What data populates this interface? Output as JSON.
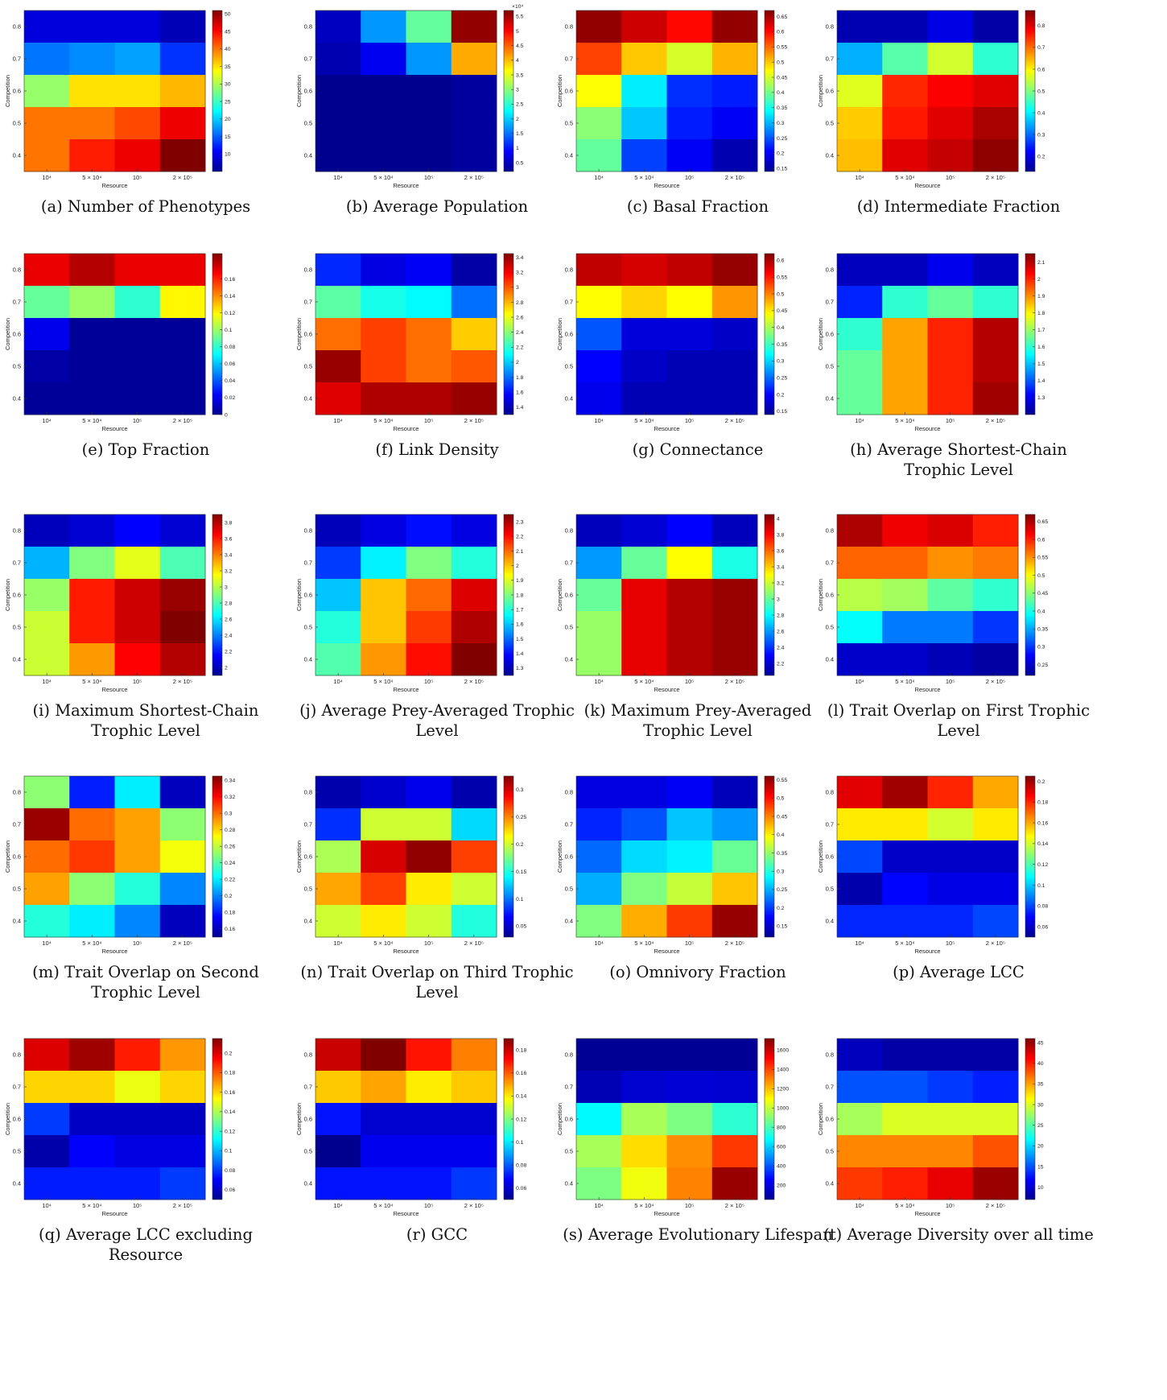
{
  "layout_labels": {
    "ylabel": "Competition",
    "xlabel": "Resource"
  },
  "rows": [
    "0.8",
    "0.7",
    "0.6",
    "0.5",
    "0.4"
  ],
  "cols": [
    "10⁴",
    "5 × 10⁴",
    "10⁵",
    "2 × 10⁵"
  ],
  "colormap": [
    "#00008f",
    "#0000ff",
    "#0080ff",
    "#00ffff",
    "#80ff80",
    "#ffff00",
    "#ff8000",
    "#ff0000",
    "#800000"
  ],
  "chart_data": [
    {
      "type": "heatmap",
      "label": "(a)",
      "title": "Number of Phenotypes",
      "vmin": 5,
      "vmax": 51,
      "cbar_ticks": [
        "10",
        "15",
        "20",
        "25",
        "30",
        "35",
        "40",
        "45",
        "50"
      ],
      "cbar_multiplier": "",
      "values": [
        [
          9,
          9,
          9,
          7
        ],
        [
          16,
          17,
          18,
          13
        ],
        [
          29,
          35,
          35,
          37
        ],
        [
          40,
          40,
          42,
          46
        ],
        [
          40,
          44,
          46,
          51
        ]
      ]
    },
    {
      "type": "heatmap",
      "label": "(b)",
      "title": "Average Population",
      "vmin": 0.2,
      "vmax": 5.7,
      "cbar_ticks": [
        "0.5",
        "1",
        "1.5",
        "2",
        "2.5",
        "3",
        "3.5",
        "4",
        "4.5",
        "5",
        "5.5"
      ],
      "cbar_multiplier": "×10⁴",
      "values": [
        [
          0.5,
          1.7,
          2.8,
          5.6
        ],
        [
          0.4,
          0.8,
          1.7,
          4.1
        ],
        [
          0.2,
          0.2,
          0.2,
          0.3
        ],
        [
          0.2,
          0.2,
          0.2,
          0.3
        ],
        [
          0.2,
          0.2,
          0.2,
          0.3
        ]
      ]
    },
    {
      "type": "heatmap",
      "label": "(c)",
      "title": "Basal Fraction",
      "vmin": 0.14,
      "vmax": 0.67,
      "cbar_ticks": [
        "0.15",
        "0.2",
        "0.25",
        "0.3",
        "0.35",
        "0.4",
        "0.45",
        "0.5",
        "0.55",
        "0.6",
        "0.65"
      ],
      "cbar_multiplier": "",
      "values": [
        [
          0.66,
          0.63,
          0.6,
          0.66
        ],
        [
          0.57,
          0.5,
          0.45,
          0.51
        ],
        [
          0.47,
          0.33,
          0.23,
          0.22
        ],
        [
          0.41,
          0.31,
          0.22,
          0.2
        ],
        [
          0.39,
          0.24,
          0.2,
          0.16
        ]
      ]
    },
    {
      "type": "heatmap",
      "label": "(d)",
      "title": "Intermediate Fraction",
      "vmin": 0.13,
      "vmax": 0.87,
      "cbar_ticks": [
        "0.2",
        "0.3",
        "0.4",
        "0.5",
        "0.6",
        "0.7",
        "0.8"
      ],
      "cbar_multiplier": "",
      "values": [
        [
          0.16,
          0.16,
          0.2,
          0.15
        ],
        [
          0.35,
          0.47,
          0.56,
          0.44
        ],
        [
          0.57,
          0.75,
          0.78,
          0.8
        ],
        [
          0.63,
          0.76,
          0.8,
          0.84
        ],
        [
          0.64,
          0.8,
          0.82,
          0.86
        ]
      ]
    },
    {
      "type": "heatmap",
      "label": "(e)",
      "title": "Top Fraction",
      "vmin": 0,
      "vmax": 0.19,
      "cbar_ticks": [
        "0",
        "0.02",
        "0.04",
        "0.06",
        "0.08",
        "0.1",
        "0.12",
        "0.14",
        "0.16"
      ],
      "cbar_multiplier": "",
      "values": [
        [
          0.17,
          0.18,
          0.17,
          0.17
        ],
        [
          0.09,
          0.1,
          0.08,
          0.12
        ],
        [
          0.02,
          0.002,
          0.002,
          0.002
        ],
        [
          0.005,
          0.002,
          0.002,
          0.002
        ],
        [
          0.002,
          0.002,
          0.002,
          0.002
        ]
      ]
    },
    {
      "type": "heatmap",
      "label": "(f)",
      "title": "Link Density",
      "vmin": 1.3,
      "vmax": 3.45,
      "cbar_ticks": [
        "1.4",
        "1.6",
        "1.8",
        "2",
        "2.2",
        "2.4",
        "2.6",
        "2.8",
        "3",
        "3.2",
        "3.4"
      ],
      "cbar_multiplier": "",
      "values": [
        [
          1.65,
          1.5,
          1.55,
          1.35
        ],
        [
          2.3,
          2.15,
          2.1,
          1.8
        ],
        [
          2.95,
          3.05,
          2.95,
          2.75
        ],
        [
          3.4,
          3.05,
          2.95,
          3.0
        ],
        [
          3.25,
          3.35,
          3.35,
          3.4
        ]
      ]
    },
    {
      "type": "heatmap",
      "label": "(g)",
      "title": "Connectance",
      "vmin": 0.14,
      "vmax": 0.62,
      "cbar_ticks": [
        "0.15",
        "0.2",
        "0.25",
        "0.3",
        "0.35",
        "0.4",
        "0.45",
        "0.5",
        "0.55",
        "0.6"
      ],
      "cbar_multiplier": "",
      "values": [
        [
          0.59,
          0.58,
          0.59,
          0.61
        ],
        [
          0.44,
          0.46,
          0.44,
          0.49
        ],
        [
          0.24,
          0.18,
          0.18,
          0.17
        ],
        [
          0.2,
          0.17,
          0.16,
          0.16
        ],
        [
          0.19,
          0.16,
          0.16,
          0.16
        ]
      ]
    },
    {
      "type": "heatmap",
      "label": "(h)",
      "title": "Average Shortest-Chain Trophic Level",
      "vmin": 1.2,
      "vmax": 2.15,
      "cbar_ticks": [
        "1.3",
        "1.4",
        "1.5",
        "1.6",
        "1.7",
        "1.8",
        "1.9",
        "2",
        "2.1"
      ],
      "cbar_multiplier": "",
      "values": [
        [
          1.25,
          1.25,
          1.3,
          1.25
        ],
        [
          1.35,
          1.6,
          1.65,
          1.6
        ],
        [
          1.6,
          1.88,
          2.0,
          2.1
        ],
        [
          1.65,
          1.88,
          2.0,
          2.1
        ],
        [
          1.65,
          1.88,
          2.0,
          2.12
        ]
      ]
    },
    {
      "type": "heatmap",
      "label": "(i)",
      "title": "Maximum Shortest-Chain Trophic Level",
      "vmin": 1.9,
      "vmax": 3.9,
      "cbar_ticks": [
        "2",
        "2.2",
        "2.4",
        "2.6",
        "2.8",
        "3",
        "3.2",
        "3.4",
        "3.6",
        "3.8"
      ],
      "cbar_multiplier": "",
      "values": [
        [
          2.0,
          2.05,
          2.15,
          2.05
        ],
        [
          2.5,
          2.9,
          3.1,
          2.8
        ],
        [
          2.95,
          3.6,
          3.75,
          3.85
        ],
        [
          3.05,
          3.6,
          3.75,
          3.9
        ],
        [
          3.05,
          3.35,
          3.65,
          3.8
        ]
      ]
    },
    {
      "type": "heatmap",
      "label": "(j)",
      "title": "Average Prey-Averaged Trophic Level",
      "vmin": 1.25,
      "vmax": 2.35,
      "cbar_ticks": [
        "1.3",
        "1.4",
        "1.5",
        "1.6",
        "1.7",
        "1.8",
        "1.9",
        "2",
        "2.1",
        "2.2",
        "2.3"
      ],
      "cbar_multiplier": "",
      "values": [
        [
          1.3,
          1.35,
          1.4,
          1.35
        ],
        [
          1.45,
          1.65,
          1.8,
          1.7
        ],
        [
          1.6,
          2.0,
          2.1,
          2.25
        ],
        [
          1.7,
          2.0,
          2.15,
          2.3
        ],
        [
          1.75,
          2.05,
          2.2,
          2.35
        ]
      ]
    },
    {
      "type": "heatmap",
      "label": "(k)",
      "title": "Maximum Prey-Averaged Trophic Level",
      "vmin": 2.05,
      "vmax": 4.05,
      "cbar_ticks": [
        "2.2",
        "2.4",
        "2.6",
        "2.8",
        "3",
        "3.2",
        "3.4",
        "3.6",
        "3.8",
        "4"
      ],
      "cbar_multiplier": "",
      "values": [
        [
          2.15,
          2.2,
          2.3,
          2.15
        ],
        [
          2.6,
          3.0,
          3.3,
          2.85
        ],
        [
          3.0,
          3.85,
          3.95,
          4.0
        ],
        [
          3.1,
          3.85,
          3.95,
          4.0
        ],
        [
          3.1,
          3.85,
          3.95,
          4.0
        ]
      ]
    },
    {
      "type": "heatmap",
      "label": "(l)",
      "title": "Trait Overlap on First Trophic Level",
      "vmin": 0.22,
      "vmax": 0.67,
      "cbar_ticks": [
        "0.25",
        "0.3",
        "0.35",
        "0.4",
        "0.45",
        "0.5",
        "0.55",
        "0.6",
        "0.65"
      ],
      "cbar_multiplier": "",
      "values": [
        [
          0.65,
          0.62,
          0.63,
          0.6
        ],
        [
          0.57,
          0.57,
          0.55,
          0.56
        ],
        [
          0.47,
          0.46,
          0.43,
          0.41
        ],
        [
          0.39,
          0.33,
          0.33,
          0.3
        ],
        [
          0.25,
          0.25,
          0.24,
          0.23
        ]
      ]
    },
    {
      "type": "heatmap",
      "label": "(m)",
      "title": "Trait Overlap on Second Trophic Level",
      "vmin": 0.15,
      "vmax": 0.345,
      "cbar_ticks": [
        "0.16",
        "0.18",
        "0.2",
        "0.22",
        "0.24",
        "0.26",
        "0.28",
        "0.3",
        "0.32",
        "0.34"
      ],
      "cbar_multiplier": "",
      "values": [
        [
          0.25,
          0.18,
          0.22,
          0.16
        ],
        [
          0.34,
          0.3,
          0.29,
          0.25
        ],
        [
          0.3,
          0.31,
          0.29,
          0.27
        ],
        [
          0.29,
          0.25,
          0.23,
          0.2
        ],
        [
          0.23,
          0.22,
          0.2,
          0.16
        ]
      ]
    },
    {
      "type": "heatmap",
      "label": "(n)",
      "title": "Trait Overlap on Third Trophic Level",
      "vmin": 0.03,
      "vmax": 0.325,
      "cbar_ticks": [
        "0.05",
        "0.1",
        "0.15",
        "0.2",
        "0.25",
        "0.3"
      ],
      "cbar_multiplier": "",
      "values": [
        [
          0.04,
          0.05,
          0.06,
          0.04
        ],
        [
          0.08,
          0.2,
          0.2,
          0.13
        ],
        [
          0.19,
          0.3,
          0.32,
          0.27
        ],
        [
          0.24,
          0.27,
          0.22,
          0.2
        ],
        [
          0.2,
          0.22,
          0.2,
          0.15
        ]
      ]
    },
    {
      "type": "heatmap",
      "label": "(o)",
      "title": "Omnivory Fraction",
      "vmin": 0.12,
      "vmax": 0.56,
      "cbar_ticks": [
        "0.15",
        "0.2",
        "0.25",
        "0.3",
        "0.35",
        "0.4",
        "0.45",
        "0.5",
        "0.55"
      ],
      "cbar_multiplier": "",
      "values": [
        [
          0.16,
          0.16,
          0.17,
          0.14
        ],
        [
          0.19,
          0.21,
          0.26,
          0.24
        ],
        [
          0.22,
          0.27,
          0.28,
          0.33
        ],
        [
          0.25,
          0.34,
          0.37,
          0.42
        ],
        [
          0.34,
          0.43,
          0.48,
          0.55
        ]
      ]
    },
    {
      "type": "heatmap",
      "label": "(p)",
      "title": "Average LCC",
      "vmin": 0.05,
      "vmax": 0.205,
      "cbar_ticks": [
        "0.06",
        "0.08",
        "0.1",
        "0.12",
        "0.14",
        "0.16",
        "0.18",
        "0.2"
      ],
      "cbar_multiplier": "",
      "values": [
        [
          0.19,
          0.2,
          0.18,
          0.16
        ],
        [
          0.15,
          0.15,
          0.14,
          0.15
        ],
        [
          0.08,
          0.06,
          0.06,
          0.06
        ],
        [
          0.055,
          0.07,
          0.065,
          0.065
        ],
        [
          0.075,
          0.075,
          0.075,
          0.08
        ]
      ]
    },
    {
      "type": "heatmap",
      "label": "(q)",
      "title": "Average LCC excluding Resource",
      "vmin": 0.05,
      "vmax": 0.215,
      "cbar_ticks": [
        "0.06",
        "0.08",
        "0.1",
        "0.12",
        "0.14",
        "0.16",
        "0.18",
        "0.2"
      ],
      "cbar_multiplier": "",
      "values": [
        [
          0.2,
          0.21,
          0.19,
          0.17
        ],
        [
          0.16,
          0.16,
          0.15,
          0.16
        ],
        [
          0.08,
          0.06,
          0.06,
          0.06
        ],
        [
          0.055,
          0.07,
          0.065,
          0.065
        ],
        [
          0.075,
          0.075,
          0.075,
          0.08
        ]
      ]
    },
    {
      "type": "heatmap",
      "label": "(r)",
      "title": "GCC",
      "vmin": 0.05,
      "vmax": 0.19,
      "cbar_ticks": [
        "0.06",
        "0.08",
        "0.1",
        "0.12",
        "0.14",
        "0.16",
        "0.18"
      ],
      "cbar_multiplier": "",
      "values": [
        [
          0.18,
          0.19,
          0.17,
          0.155
        ],
        [
          0.145,
          0.15,
          0.14,
          0.145
        ],
        [
          0.07,
          0.06,
          0.06,
          0.06
        ],
        [
          0.05,
          0.065,
          0.065,
          0.065
        ],
        [
          0.07,
          0.07,
          0.07,
          0.075
        ]
      ]
    },
    {
      "type": "heatmap",
      "label": "(s)",
      "title": "Average Evolutionary Lifespan",
      "vmin": 50,
      "vmax": 1720,
      "cbar_ticks": [
        "200",
        "400",
        "600",
        "800",
        "1000",
        "1200",
        "1400",
        "1600"
      ],
      "cbar_multiplier": "",
      "values": [
        [
          60,
          60,
          60,
          60
        ],
        [
          120,
          170,
          180,
          170
        ],
        [
          670,
          950,
          880,
          750
        ],
        [
          950,
          1150,
          1280,
          1420
        ],
        [
          880,
          1070,
          1300,
          1680
        ]
      ]
    },
    {
      "type": "heatmap",
      "label": "(t)",
      "title": "Average Diversity over all time",
      "vmin": 7,
      "vmax": 46,
      "cbar_ticks": [
        "10",
        "15",
        "20",
        "25",
        "30",
        "35",
        "40",
        "45"
      ],
      "cbar_multiplier": "",
      "values": [
        [
          9,
          8,
          8,
          8
        ],
        [
          15,
          15,
          14,
          13
        ],
        [
          28,
          30,
          30,
          30
        ],
        [
          36,
          36,
          36,
          38
        ],
        [
          39,
          40,
          42,
          45
        ]
      ]
    }
  ]
}
